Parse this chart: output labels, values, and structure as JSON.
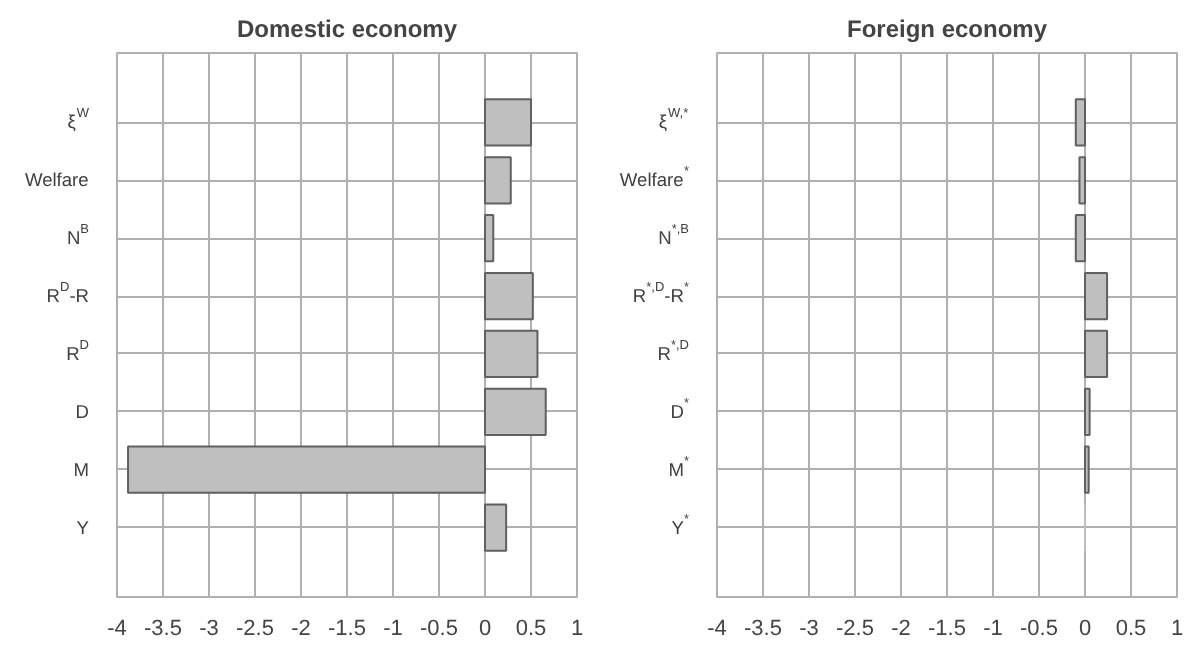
{
  "chart_data": [
    {
      "type": "bar",
      "orientation": "horizontal",
      "title": "Domestic economy",
      "categories": [
        "ξ$^{W}$",
        "Welfare",
        "N$^{B}$",
        "R$^{D}$-R",
        "R$^{D}$",
        "D",
        "M",
        "Y"
      ],
      "values": [
        0.5,
        0.28,
        0.09,
        0.52,
        0.57,
        0.66,
        -3.88,
        0.23
      ],
      "color": "#bfbfbf",
      "xlim": [
        -4,
        1
      ],
      "xticks": [
        -4,
        -3.5,
        -3,
        -2.5,
        -2,
        -1.5,
        -1,
        -0.5,
        0,
        0.5,
        1
      ],
      "grid": true
    },
    {
      "type": "bar",
      "orientation": "horizontal",
      "title": "Foreign economy",
      "categories": [
        "ξ$^{W,*}$",
        "Welfare$^{*}$",
        "N$^{*,B}$",
        "R$^{*,D}$-R$^{*}$",
        "R$^{*,D}$",
        "D$^{*}$",
        "M$^{*}$",
        "Y$^{*}$"
      ],
      "values": [
        -0.1,
        -0.06,
        -0.1,
        0.24,
        0.24,
        0.05,
        0.04,
        0.0
      ],
      "color": "#bfbfbf",
      "xlim": [
        -4,
        1
      ],
      "xticks": [
        -4,
        -3.5,
        -3,
        -2.5,
        -2,
        -1.5,
        -1,
        -0.5,
        0,
        0.5,
        1
      ],
      "grid": true
    }
  ]
}
